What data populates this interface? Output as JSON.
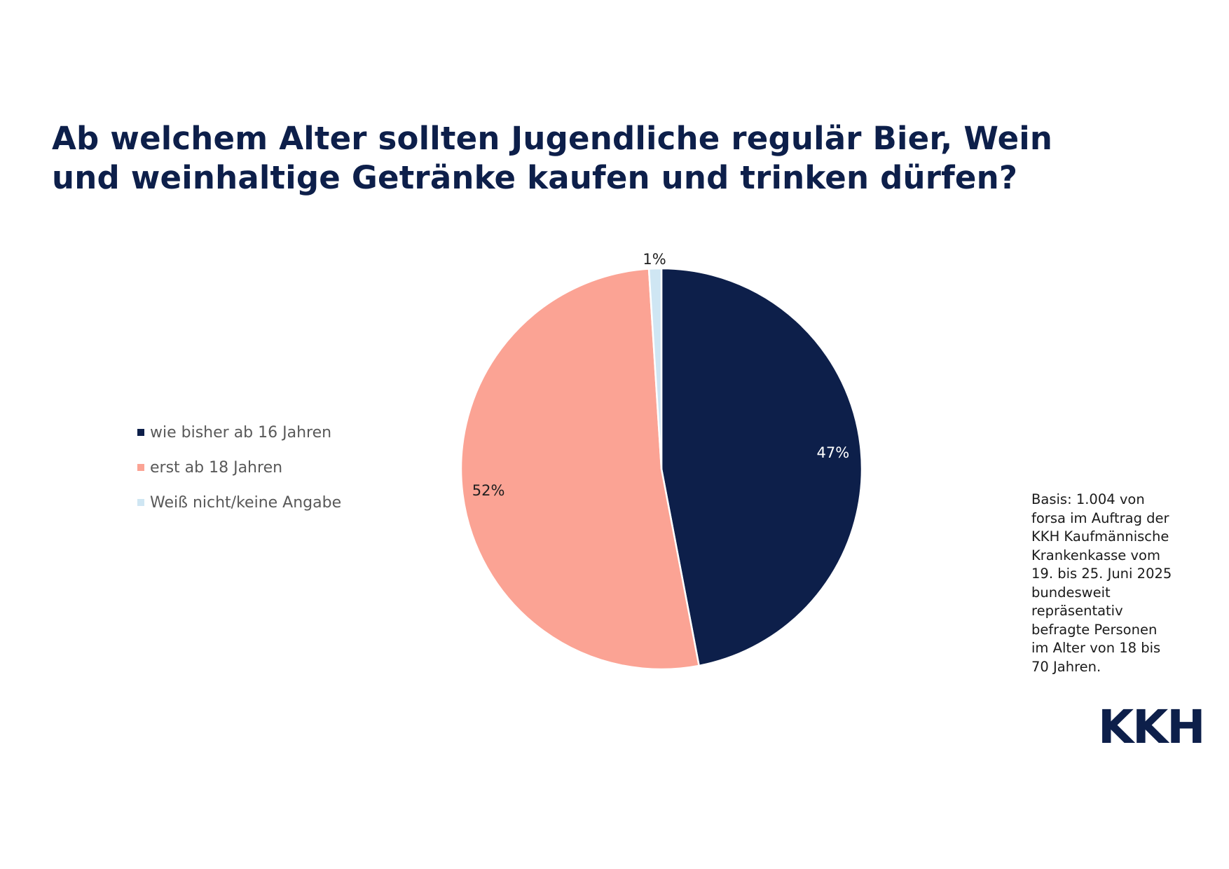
{
  "chart_data": {
    "type": "pie",
    "title_lines": [
      "Ab welchem Alter sollten Jugendliche regulär Bier, Wein",
      "und weinhaltige Getränke kaufen und trinken dürfen?"
    ],
    "slices": [
      {
        "label": "wie bisher ab 16 Jahren",
        "value": 47,
        "data_label": "47%",
        "color": "#0d1f4a",
        "label_color": "#ffffff"
      },
      {
        "label": "erst ab 18 Jahren",
        "value": 52,
        "data_label": "52%",
        "color": "#fba394",
        "label_color": "#1f1f1f"
      },
      {
        "label": "Weiß nicht/keine Angabe",
        "value": 1,
        "data_label": "1%",
        "color": "#cfe6f3",
        "label_color": "#1f1f1f"
      }
    ],
    "start_angle": "12 o'clock",
    "direction": "clockwise",
    "legend_position": "left",
    "note_lines": [
      "Basis: 1.004 von",
      "forsa im Auftrag der",
      "KKH Kaufmännische",
      "Krankenkasse vom",
      "19. bis 25. Juni 2025",
      "bundesweit",
      "repräsentativ",
      "befragte Personen",
      "im Alter von 18 bis",
      "70 Jahren."
    ]
  },
  "logo": {
    "text": "KKH",
    "color": "#0d1f4a"
  }
}
